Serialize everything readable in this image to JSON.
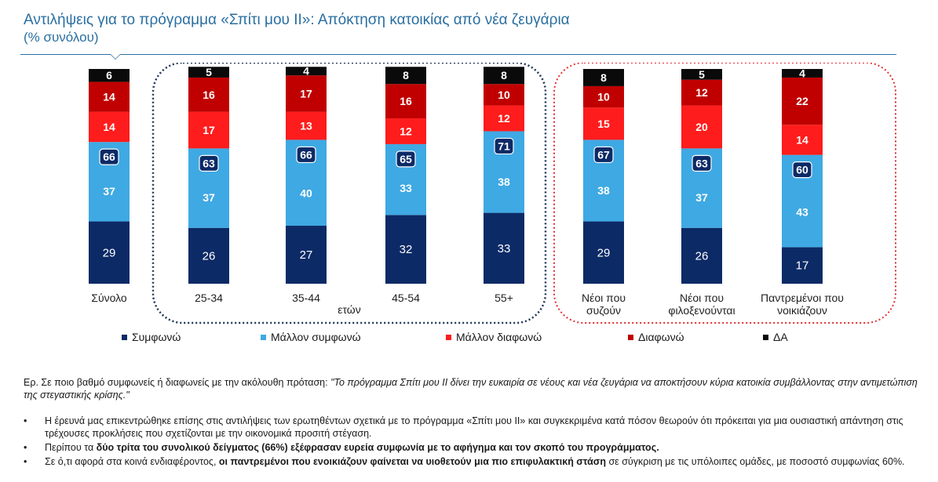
{
  "header": {
    "title": "Αντιλήψεις για το πρόγραμμα «Σπίτι μου ΙΙ»: Απόκτηση κατοικίας από νέα ζευγάρια",
    "subtitle": "(% συνόλου)"
  },
  "colors": {
    "agree": "#0c2a66",
    "rather_agree": "#3fa9e3",
    "rather_disagree": "#ff1c1c",
    "disagree": "#c00000",
    "dk": "#0a0a0a",
    "age_group_border": "#1e3557",
    "household_group_border": "#e03030",
    "total_badge_bg": "#0c2a66"
  },
  "chart_data": {
    "type": "bar",
    "stacked": true,
    "categories": [
      "Σύνολο",
      "25-34",
      "35-44",
      "45-54",
      "55+",
      "Νέοι που συζούν",
      "Νέοι που φιλοξενούνται",
      "Παντρεμένοι που νοικιάζουν"
    ],
    "group_labels": [
      {
        "label": "ετών",
        "categories": [
          "25-34",
          "35-44",
          "45-54",
          "55+"
        ]
      },
      {
        "label": "",
        "categories": [
          "Νέοι που συζούν",
          "Νέοι που φιλοξενούνται",
          "Παντρεμένοι που νοικιάζουν"
        ]
      }
    ],
    "series": [
      {
        "name": "Συμφωνώ",
        "color_key": "agree",
        "values": [
          29,
          26,
          27,
          32,
          33,
          29,
          26,
          17
        ]
      },
      {
        "name": "Μάλλον συμφωνώ",
        "color_key": "rather_agree",
        "values": [
          37,
          37,
          40,
          33,
          38,
          38,
          37,
          43
        ]
      },
      {
        "name": "Μάλλον διαφωνώ",
        "color_key": "rather_disagree",
        "values": [
          14,
          17,
          13,
          12,
          12,
          15,
          20,
          14
        ]
      },
      {
        "name": "Διαφωνώ",
        "color_key": "disagree",
        "values": [
          14,
          16,
          17,
          16,
          10,
          10,
          12,
          22
        ]
      },
      {
        "name": "ΔΑ",
        "color_key": "dk",
        "values": [
          6,
          5,
          4,
          8,
          8,
          8,
          5,
          4
        ]
      }
    ],
    "totals_agree": [
      66,
      63,
      66,
      65,
      71,
      67,
      63,
      60
    ],
    "ylim": [
      0,
      100
    ]
  },
  "notes": {
    "question_prefix": "Ερ. Σε ποιο βαθμό συμφωνείς ή διαφωνείς με την ακόλουθη πρόταση: ",
    "question_text": "\"Το πρόγραμμα Σπίτι μου ΙΙ δίνει την ευκαιρία σε νέους και νέα ζευγάρια να αποκτήσουν κύρια κατοικία συμβάλλοντας στην αντιμετώπιση της στεγαστικής κρίσης.\"",
    "bullet1": "Η έρευνά μας επικεντρώθηκε επίσης στις αντιλήψεις των ερωτηθέντων σχετικά με το πρόγραμμα «Σπίτι μου ΙΙ» και συγκεκριμένα κατά πόσον θεωρούν ότι πρόκειται για μια ουσιαστική απάντηση στις τρέχουσες προκλήσεις που σχετίζονται με την οικονομικά προσιτή στέγαση.",
    "bullet2_pre": "Περίπου τα ",
    "bullet2_bold": "δύο τρίτα του συνολικού δείγματος (66%) εξέφρασαν ευρεία συμφωνία με το αφήγημα και τον σκοπό του προγράμματος.",
    "bullet3_pre": "Σε ό,τι αφορά στα κοινά ενδιαφέροντος, ",
    "bullet3_bold": "οι παντρεμένοι που ενοικιάζουν φαίνεται να υιοθετούν μια πιο επιφυλακτική στάση",
    "bullet3_post": " σε σύγκριση με τις υπόλοιπες ομάδες, με ποσοστό συμφωνίας 60%."
  }
}
